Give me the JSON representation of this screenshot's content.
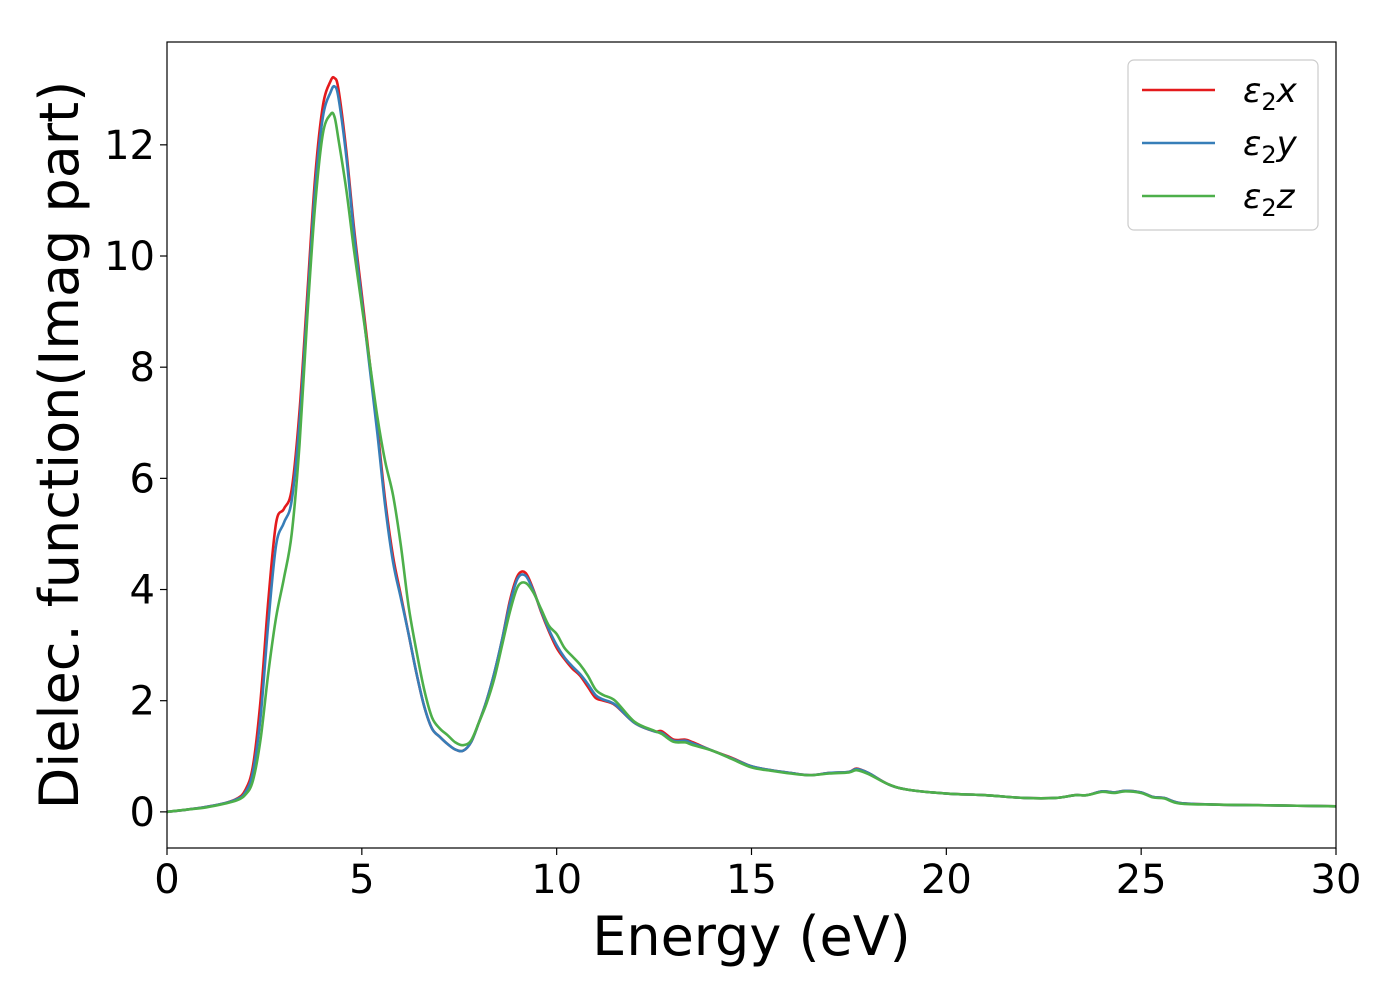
{
  "chart_data": {
    "type": "line",
    "title": "",
    "xlabel": "Energy (eV)",
    "ylabel": "Dielec. function(Imag part)",
    "xlim": [
      0,
      30
    ],
    "ylim": [
      -0.65,
      13.85
    ],
    "xticks": [
      0,
      5,
      10,
      15,
      20,
      25,
      30
    ],
    "yticks": [
      0,
      2,
      4,
      6,
      8,
      10,
      12
    ],
    "grid": false,
    "legend_position": "top-right",
    "series": [
      {
        "name": "ε₂x",
        "legend_base": "ε",
        "legend_sub": "2",
        "legend_var": "x",
        "color": "#e41a1c",
        "x": [
          0,
          0.5,
          1,
          1.5,
          1.8,
          2.0,
          2.2,
          2.4,
          2.6,
          2.8,
          3.0,
          3.2,
          3.4,
          3.6,
          3.8,
          4.0,
          4.2,
          4.3,
          4.4,
          4.6,
          4.8,
          5.0,
          5.2,
          5.4,
          5.6,
          5.8,
          6.0,
          6.2,
          6.4,
          6.6,
          6.8,
          7.0,
          7.2,
          7.4,
          7.6,
          7.8,
          8.0,
          8.2,
          8.4,
          8.6,
          8.8,
          9.0,
          9.2,
          9.4,
          9.6,
          9.8,
          10.0,
          10.2,
          10.4,
          10.6,
          10.8,
          11.0,
          11.2,
          11.5,
          12.0,
          12.5,
          12.7,
          13.0,
          13.3,
          13.5,
          14.0,
          14.5,
          15.0,
          15.5,
          16.0,
          16.5,
          17.0,
          17.5,
          17.7,
          18.0,
          18.5,
          19.0,
          20.0,
          21.0,
          22.0,
          22.8,
          23.3,
          23.6,
          24.0,
          24.3,
          24.6,
          25.0,
          25.3,
          25.6,
          26.0,
          27.0,
          28.0,
          29.0,
          30.0
        ],
        "y": [
          0.0,
          0.04,
          0.09,
          0.16,
          0.24,
          0.38,
          0.8,
          2.0,
          3.8,
          5.2,
          5.45,
          5.8,
          7.2,
          9.3,
          11.4,
          12.7,
          13.15,
          13.2,
          13.0,
          11.9,
          10.5,
          9.3,
          8.1,
          6.9,
          5.6,
          4.6,
          3.9,
          3.2,
          2.5,
          1.9,
          1.5,
          1.35,
          1.22,
          1.12,
          1.1,
          1.25,
          1.6,
          2.0,
          2.5,
          3.1,
          3.8,
          4.25,
          4.3,
          4.0,
          3.6,
          3.25,
          2.95,
          2.75,
          2.58,
          2.45,
          2.25,
          2.05,
          2.0,
          1.92,
          1.6,
          1.45,
          1.45,
          1.3,
          1.3,
          1.25,
          1.1,
          0.97,
          0.82,
          0.75,
          0.7,
          0.66,
          0.7,
          0.72,
          0.78,
          0.7,
          0.5,
          0.4,
          0.33,
          0.3,
          0.25,
          0.25,
          0.3,
          0.3,
          0.37,
          0.35,
          0.38,
          0.35,
          0.27,
          0.25,
          0.16,
          0.13,
          0.12,
          0.11,
          0.1
        ]
      },
      {
        "name": "ε₂y",
        "legend_base": "ε",
        "legend_sub": "2",
        "legend_var": "y",
        "color": "#377eb8",
        "x": [
          0,
          0.5,
          1,
          1.5,
          1.8,
          2.0,
          2.2,
          2.4,
          2.6,
          2.8,
          3.0,
          3.2,
          3.4,
          3.6,
          3.8,
          4.0,
          4.2,
          4.3,
          4.4,
          4.6,
          4.8,
          5.0,
          5.2,
          5.4,
          5.6,
          5.8,
          6.0,
          6.2,
          6.4,
          6.6,
          6.8,
          7.0,
          7.2,
          7.4,
          7.6,
          7.8,
          8.0,
          8.2,
          8.4,
          8.6,
          8.8,
          9.0,
          9.2,
          9.4,
          9.6,
          9.8,
          10.0,
          10.2,
          10.4,
          10.6,
          10.8,
          11.0,
          11.2,
          11.5,
          12.0,
          12.5,
          12.7,
          13.0,
          13.3,
          13.5,
          14.0,
          14.5,
          15.0,
          15.5,
          16.0,
          16.5,
          17.0,
          17.5,
          17.7,
          18.0,
          18.5,
          19.0,
          20.0,
          21.0,
          22.0,
          22.8,
          23.3,
          23.6,
          24.0,
          24.3,
          24.6,
          25.0,
          25.3,
          25.6,
          26.0,
          27.0,
          28.0,
          29.0,
          30.0
        ],
        "y": [
          0.0,
          0.04,
          0.09,
          0.16,
          0.23,
          0.34,
          0.7,
          1.7,
          3.4,
          4.8,
          5.2,
          5.6,
          7.0,
          9.1,
          11.2,
          12.5,
          12.95,
          13.05,
          12.85,
          11.8,
          10.4,
          9.2,
          8.0,
          6.8,
          5.5,
          4.5,
          3.85,
          3.2,
          2.5,
          1.9,
          1.5,
          1.35,
          1.22,
          1.12,
          1.1,
          1.25,
          1.6,
          2.0,
          2.5,
          3.1,
          3.75,
          4.2,
          4.25,
          3.98,
          3.62,
          3.28,
          3.0,
          2.78,
          2.62,
          2.48,
          2.3,
          2.1,
          2.02,
          1.93,
          1.6,
          1.45,
          1.42,
          1.28,
          1.28,
          1.23,
          1.1,
          0.96,
          0.82,
          0.75,
          0.7,
          0.66,
          0.7,
          0.72,
          0.77,
          0.7,
          0.5,
          0.4,
          0.33,
          0.3,
          0.25,
          0.25,
          0.3,
          0.3,
          0.37,
          0.35,
          0.38,
          0.35,
          0.27,
          0.25,
          0.16,
          0.13,
          0.12,
          0.11,
          0.1
        ]
      },
      {
        "name": "ε₂z",
        "legend_base": "ε",
        "legend_sub": "2",
        "legend_var": "z",
        "color": "#4daf4a",
        "x": [
          0,
          0.5,
          1,
          1.5,
          1.8,
          2.0,
          2.2,
          2.4,
          2.6,
          2.8,
          3.0,
          3.2,
          3.4,
          3.6,
          3.8,
          4.0,
          4.2,
          4.3,
          4.4,
          4.6,
          4.8,
          5.0,
          5.2,
          5.4,
          5.6,
          5.8,
          6.0,
          6.2,
          6.4,
          6.6,
          6.8,
          7.0,
          7.2,
          7.4,
          7.6,
          7.8,
          8.0,
          8.2,
          8.4,
          8.6,
          8.8,
          9.0,
          9.2,
          9.4,
          9.6,
          9.8,
          10.0,
          10.2,
          10.4,
          10.6,
          10.8,
          11.0,
          11.2,
          11.5,
          12.0,
          12.5,
          12.7,
          13.0,
          13.3,
          13.5,
          14.0,
          14.5,
          15.0,
          15.5,
          16.0,
          16.5,
          17.0,
          17.5,
          17.7,
          18.0,
          18.5,
          19.0,
          20.0,
          21.0,
          22.0,
          22.8,
          23.3,
          23.6,
          24.0,
          24.3,
          24.6,
          25.0,
          25.3,
          25.6,
          26.0,
          27.0,
          28.0,
          29.0,
          30.0
        ],
        "y": [
          0.0,
          0.04,
          0.08,
          0.15,
          0.21,
          0.3,
          0.55,
          1.3,
          2.5,
          3.5,
          4.2,
          5.0,
          6.6,
          8.9,
          10.9,
          12.2,
          12.55,
          12.5,
          12.1,
          11.2,
          10.1,
          9.1,
          8.1,
          7.1,
          6.3,
          5.7,
          4.8,
          3.7,
          2.9,
          2.2,
          1.7,
          1.5,
          1.38,
          1.25,
          1.2,
          1.28,
          1.6,
          1.95,
          2.4,
          3.0,
          3.6,
          4.05,
          4.12,
          3.95,
          3.65,
          3.35,
          3.2,
          2.95,
          2.8,
          2.65,
          2.45,
          2.2,
          2.1,
          2.0,
          1.62,
          1.46,
          1.4,
          1.26,
          1.25,
          1.2,
          1.1,
          0.95,
          0.8,
          0.74,
          0.69,
          0.66,
          0.69,
          0.71,
          0.75,
          0.68,
          0.5,
          0.4,
          0.33,
          0.3,
          0.25,
          0.25,
          0.3,
          0.3,
          0.36,
          0.34,
          0.37,
          0.34,
          0.26,
          0.24,
          0.15,
          0.13,
          0.12,
          0.11,
          0.1
        ]
      }
    ]
  }
}
